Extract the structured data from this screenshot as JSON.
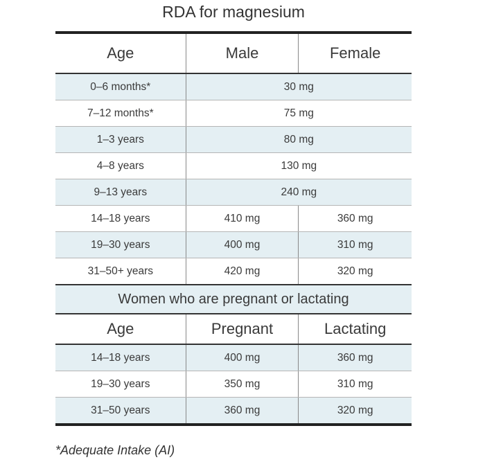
{
  "title": "RDA for magnesium",
  "header": {
    "age": "Age",
    "male": "Male",
    "female": "Female"
  },
  "rows": [
    {
      "age": "0–6 months*",
      "both": "30 mg"
    },
    {
      "age": "7–12 months*",
      "both": "75 mg"
    },
    {
      "age": "1–3 years",
      "both": "80 mg"
    },
    {
      "age": "4–8 years",
      "both": "130 mg"
    },
    {
      "age": "9–13 years",
      "both": "240 mg"
    },
    {
      "age": "14–18 years",
      "male": "410 mg",
      "female": "360 mg"
    },
    {
      "age": "19–30 years",
      "male": "400 mg",
      "female": "310 mg"
    },
    {
      "age": "31–50+ years",
      "male": "420 mg",
      "female": "320 mg"
    }
  ],
  "section2": {
    "title": "Women who are pregnant or lactating",
    "age": "Age",
    "pregnant": "Pregnant",
    "lactating": "Lactating",
    "rows": [
      {
        "age": "14–18 years",
        "pregnant": "400 mg",
        "lactating": "360 mg"
      },
      {
        "age": "19–30 years",
        "pregnant": "350 mg",
        "lactating": "310 mg"
      },
      {
        "age": "31–50 years",
        "pregnant": "360 mg",
        "lactating": "320 mg"
      }
    ]
  },
  "footnote": "*Adequate Intake (AI)",
  "colors": {
    "shade": "#e4eff3",
    "rule": "#222222"
  }
}
